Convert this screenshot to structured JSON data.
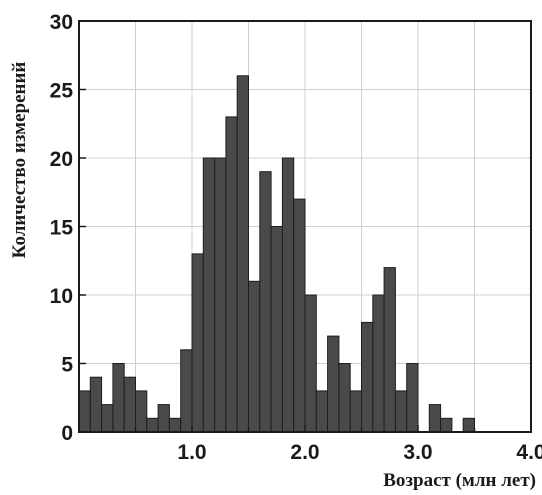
{
  "chart_data": {
    "type": "bar",
    "title": "",
    "xlabel": "Возраст (млн лет)",
    "ylabel": "Количество измерений",
    "xlim": [
      0,
      4.0
    ],
    "ylim": [
      0,
      30
    ],
    "bin_width": 0.1,
    "x_ticks": [
      "1.0",
      "2.0",
      "3.0",
      "4.0"
    ],
    "x_tick_values": [
      1.0,
      2.0,
      3.0,
      4.0
    ],
    "y_ticks": [
      "0",
      "5",
      "10",
      "15",
      "20",
      "25",
      "30"
    ],
    "y_tick_values": [
      0,
      5,
      10,
      15,
      20,
      25,
      30
    ],
    "grid": true,
    "bar_color": "#4a4a4a",
    "bin_starts": [
      0.0,
      0.1,
      0.2,
      0.3,
      0.4,
      0.5,
      0.6,
      0.7,
      0.8,
      0.9,
      1.0,
      1.1,
      1.2,
      1.3,
      1.4,
      1.5,
      1.6,
      1.7,
      1.8,
      1.9,
      2.0,
      2.1,
      2.2,
      2.3,
      2.4,
      2.5,
      2.6,
      2.7,
      2.8,
      2.9,
      3.0,
      3.1,
      3.2,
      3.3,
      3.4,
      3.5,
      3.6,
      3.7,
      3.8,
      3.9
    ],
    "values": [
      3,
      4,
      2,
      5,
      4,
      3,
      1,
      2,
      1,
      6,
      13,
      20,
      20,
      23,
      26,
      11,
      19,
      15,
      20,
      17,
      10,
      3,
      7,
      5,
      3,
      8,
      10,
      12,
      3,
      5,
      0,
      2,
      1,
      0,
      1,
      0,
      0,
      0,
      0,
      0
    ]
  }
}
